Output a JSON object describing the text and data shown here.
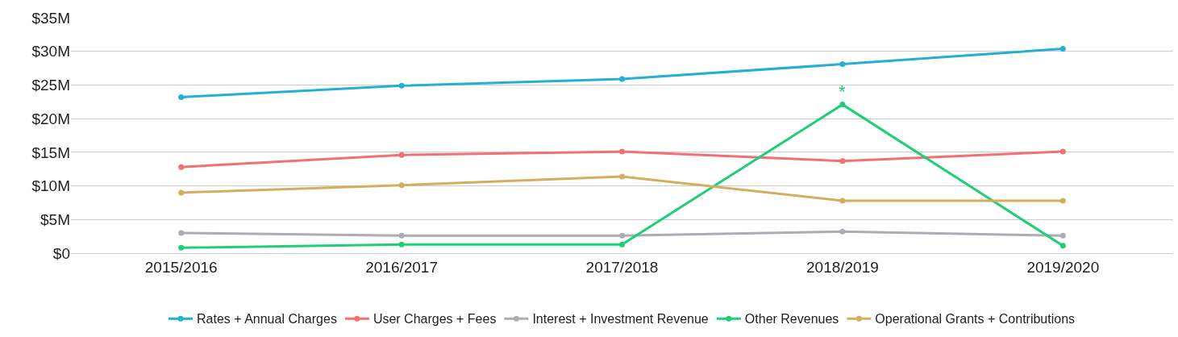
{
  "chart_data": {
    "type": "line",
    "categories": [
      "2015/2016",
      "2016/2017",
      "2017/2018",
      "2018/2019",
      "2019/2020"
    ],
    "series": [
      {
        "name": "Rates + Annual Charges",
        "color": "#22b0d4",
        "values": [
          23.2,
          24.9,
          25.9,
          28.1,
          30.4
        ]
      },
      {
        "name": "User Charges + Fees",
        "color": "#f46e72",
        "values": [
          12.8,
          14.6,
          15.1,
          13.7,
          15.1
        ]
      },
      {
        "name": "Interest + Investment Revenue",
        "color": "#acacb4",
        "values": [
          3.0,
          2.6,
          2.6,
          3.2,
          2.6
        ]
      },
      {
        "name": "Other Revenues",
        "color": "#1ecf77",
        "values": [
          0.8,
          1.3,
          1.3,
          22.1,
          1.1
        ]
      },
      {
        "name": "Operational Grants + Contributions",
        "color": "#d4ae5c",
        "values": [
          9.0,
          10.1,
          11.4,
          7.8,
          7.8
        ]
      }
    ],
    "ylim": [
      0,
      35
    ],
    "yticks": [
      {
        "value": 0,
        "label": "$0"
      },
      {
        "value": 5,
        "label": "$5M"
      },
      {
        "value": 10,
        "label": "$10M"
      },
      {
        "value": 15,
        "label": "$15M"
      },
      {
        "value": 20,
        "label": "$20M"
      },
      {
        "value": 25,
        "label": "$25M"
      },
      {
        "value": 30,
        "label": "$30M"
      },
      {
        "value": 35,
        "label": "$35M"
      }
    ],
    "annotations": [
      {
        "text": "*",
        "x": "2018/2019",
        "y": 22.1
      }
    ],
    "grid": "y",
    "legend": "bottom",
    "marker": "circle",
    "line_style": "solid"
  }
}
